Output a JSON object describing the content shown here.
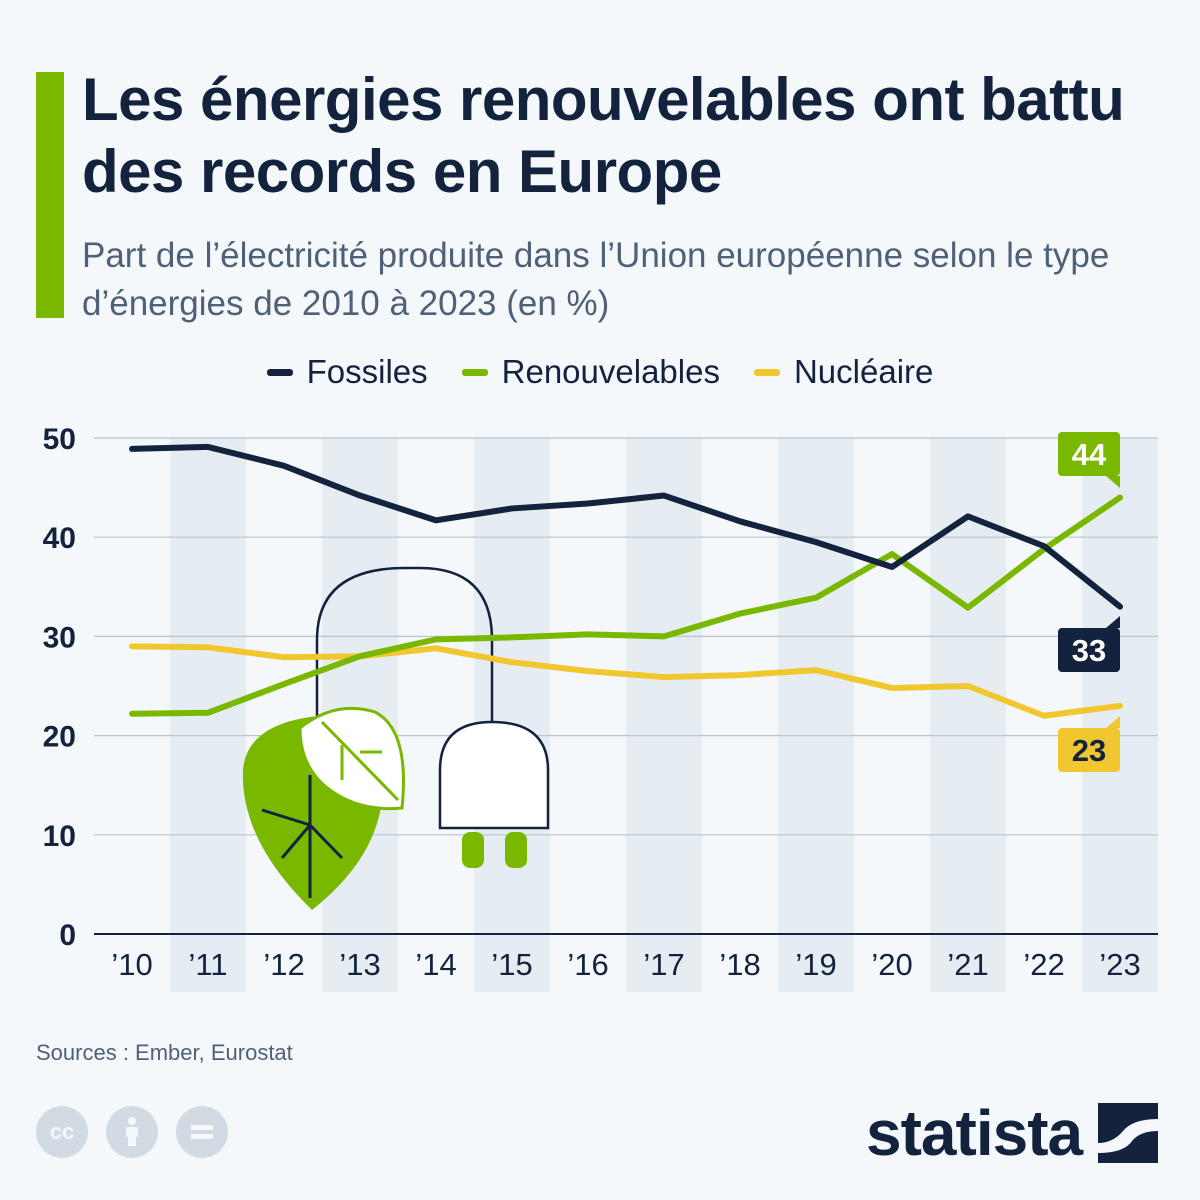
{
  "header": {
    "title": "Les énergies renouvelables ont battu des records en Europe",
    "subtitle": "Part de l’électricité produite dans l’Union européenne selon le type d’énergies de 2010 à 2023 (en %)"
  },
  "chart_data": {
    "type": "line",
    "x": [
      "’10",
      "’11",
      "’12",
      "’13",
      "’14",
      "’15",
      "’16",
      "’17",
      "’18",
      "’19",
      "’20",
      "’21",
      "’22",
      "’23"
    ],
    "yticks": [
      "0",
      "10",
      "20",
      "30",
      "40",
      "50"
    ],
    "ylim": [
      0,
      50
    ],
    "grid": true,
    "legend_position": "top-center",
    "series": [
      {
        "name": "Fossiles",
        "color": "#13233d",
        "values": [
          48.9,
          49.1,
          47.2,
          44.2,
          41.7,
          42.9,
          43.4,
          44.2,
          41.6,
          39.5,
          37.0,
          42.1,
          39.1,
          33.0
        ],
        "end_label": "33"
      },
      {
        "name": "Renouvelables",
        "color": "#7ab800",
        "values": [
          22.2,
          22.3,
          25.2,
          28.0,
          29.7,
          29.9,
          30.2,
          30.0,
          32.3,
          33.9,
          38.3,
          32.9,
          38.8,
          44.0
        ],
        "end_label": "44"
      },
      {
        "name": "Nucléaire",
        "color": "#f1c72f",
        "values": [
          29.0,
          28.9,
          27.9,
          28.0,
          28.8,
          27.4,
          26.5,
          25.9,
          26.1,
          26.6,
          24.8,
          25.0,
          22.0,
          23.0
        ],
        "end_label": "23"
      }
    ]
  },
  "footer": {
    "source": "Sources : Ember, Eurostat",
    "brand": "statista",
    "cc_icons": [
      "cc",
      "by",
      "nd"
    ]
  }
}
